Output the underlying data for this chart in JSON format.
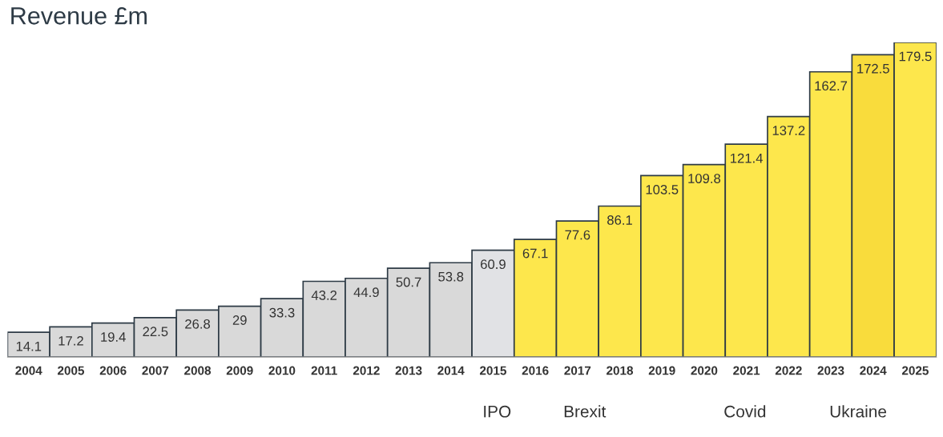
{
  "chart_data": {
    "type": "bar",
    "title": "Revenue £m",
    "categories": [
      "2004",
      "2005",
      "2006",
      "2007",
      "2008",
      "2009",
      "2010",
      "2011",
      "2012",
      "2013",
      "2014",
      "2015",
      "2016",
      "2017",
      "2018",
      "2019",
      "2020",
      "2021",
      "2022",
      "2023",
      "2024",
      "2025"
    ],
    "values": [
      14.1,
      17.2,
      19.4,
      22.5,
      26.8,
      29,
      33.3,
      43.2,
      44.9,
      50.7,
      53.8,
      60.9,
      67.1,
      77.6,
      86.1,
      103.5,
      109.8,
      121.4,
      137.2,
      162.7,
      172.5,
      179.5
    ],
    "colors": [
      "#d9d9d9",
      "#d9d9d9",
      "#d9d9d9",
      "#d9d9d9",
      "#d9d9d9",
      "#d9d9d9",
      "#d9d9d9",
      "#d9d9d9",
      "#d9d9d9",
      "#d9d9d9",
      "#d9d9d9",
      "#e1e2e5",
      "#fde74c",
      "#fde74c",
      "#fde74c",
      "#fde74c",
      "#fde74c",
      "#fde74c",
      "#fde74c",
      "#fde74c",
      "#f9dc3c",
      "#fde74c"
    ],
    "data_labels": true,
    "annotations": [
      "IPO",
      "Brexit",
      "Covid",
      "Ukraine"
    ]
  }
}
